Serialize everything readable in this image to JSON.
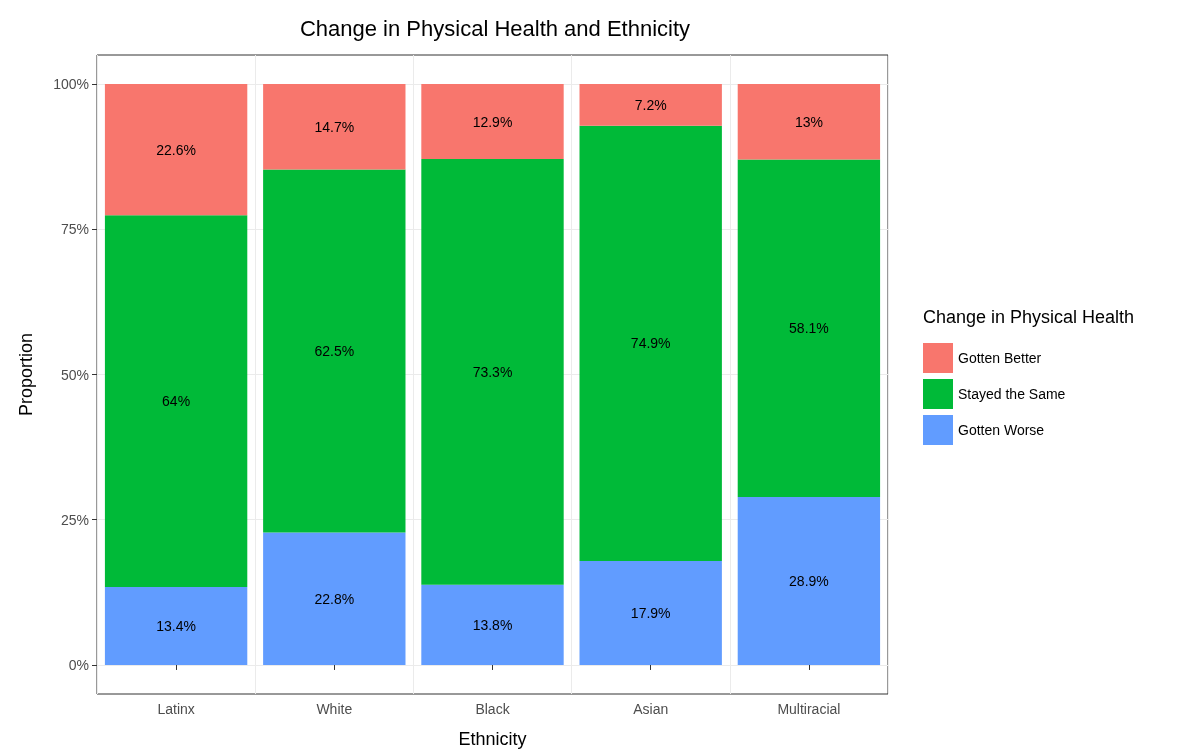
{
  "chart_data": {
    "type": "bar",
    "title": "Change in Physical Health and Ethnicity",
    "xlabel": "Ethnicity",
    "ylabel": "Proportion",
    "legend_title": "Change in Physical Health",
    "categories": [
      "Latinx",
      "White",
      "Black",
      "Asian",
      "Multiracial"
    ],
    "stacked": true,
    "series": [
      {
        "name": "Gotten Worse",
        "color": "#619cff",
        "values": [
          13.4,
          22.8,
          13.8,
          17.9,
          28.9
        ],
        "value_labels": [
          "13.4%",
          "22.8%",
          "13.8%",
          "17.9%",
          "28.9%"
        ]
      },
      {
        "name": "Stayed the Same",
        "color": "#00ba38",
        "values": [
          64,
          62.5,
          73.3,
          74.9,
          58.1
        ],
        "value_labels": [
          "64%",
          "62.5%",
          "73.3%",
          "74.9%",
          "58.1%"
        ]
      },
      {
        "name": "Gotten Better",
        "color": "#f8766d",
        "values": [
          22.6,
          14.7,
          12.9,
          7.2,
          13
        ],
        "value_labels": [
          "22.6%",
          "14.7%",
          "12.9%",
          "7.2%",
          "13%"
        ]
      }
    ],
    "ylim": [
      -5,
      105
    ],
    "yticks": [
      {
        "value": 0,
        "label": "0%"
      },
      {
        "value": 25,
        "label": "25%"
      },
      {
        "value": 50,
        "label": "50%"
      },
      {
        "value": 75,
        "label": "75%"
      },
      {
        "value": 100,
        "label": "100%"
      }
    ],
    "grid": true,
    "legend": "right"
  }
}
